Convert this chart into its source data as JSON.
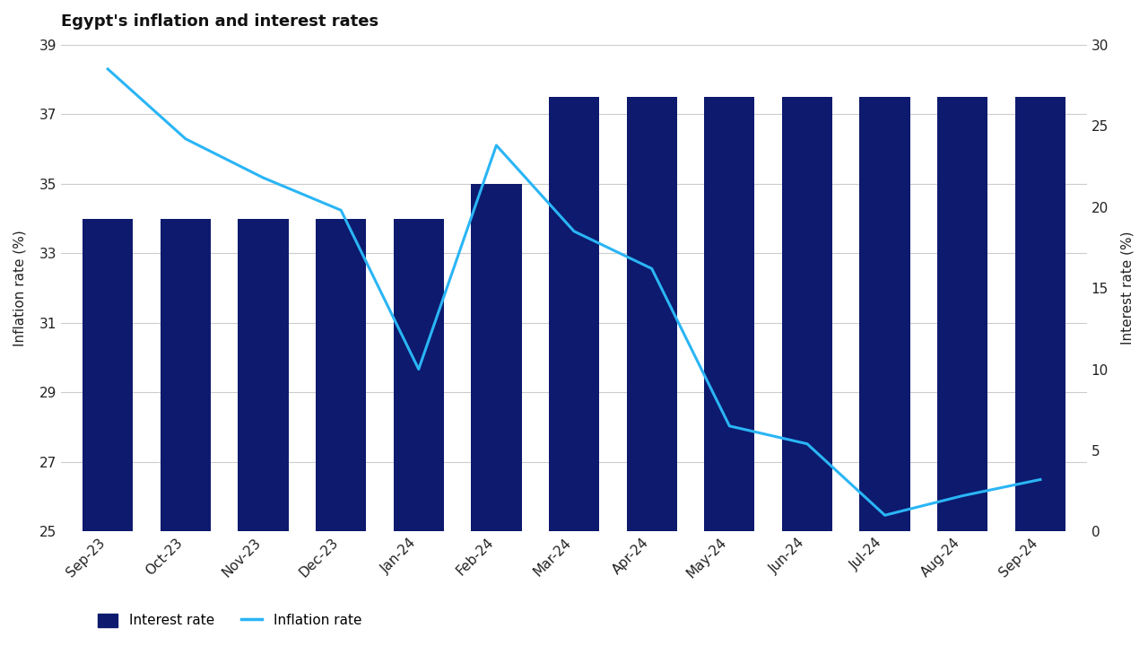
{
  "title": "Egypt's inflation and interest rates",
  "categories": [
    "Sep-23",
    "Oct-23",
    "Nov-23",
    "Dec-23",
    "Jan-24",
    "Feb-24",
    "Mar-24",
    "Apr-24",
    "May-24",
    "Jun-24",
    "Jul-24",
    "Aug-24",
    "Sep-24"
  ],
  "interest_rate": [
    34.0,
    34.0,
    34.0,
    34.0,
    34.0,
    35.0,
    37.5,
    37.5,
    37.5,
    37.5,
    37.5,
    37.5,
    37.5
  ],
  "inflation_rate": [
    28.5,
    24.2,
    21.8,
    19.8,
    10.0,
    23.8,
    18.5,
    16.2,
    6.5,
    5.4,
    1.0,
    2.2,
    3.2
  ],
  "bar_color": "#0d1a6e",
  "line_color": "#2ab5f5",
  "ylabel_left": "Inflation rate (%)",
  "ylabel_right": "Interest rate (%)",
  "ylim_left": [
    25,
    39
  ],
  "ylim_right": [
    0,
    30
  ],
  "yticks_left": [
    25,
    27,
    29,
    31,
    33,
    35,
    37,
    39
  ],
  "yticks_right": [
    0,
    5,
    10,
    15,
    20,
    25,
    30
  ],
  "background_color": "#ffffff",
  "legend_interest": "Interest rate",
  "legend_inflation": "Inflation rate",
  "title_fontsize": 13,
  "axis_fontsize": 11,
  "tick_fontsize": 11
}
